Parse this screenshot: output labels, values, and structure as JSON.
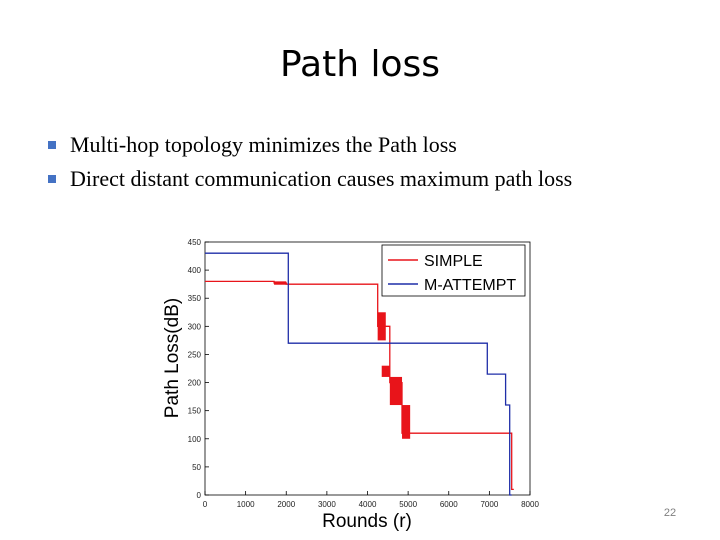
{
  "slide": {
    "title": "Path loss",
    "bullets": [
      "Multi-hop topology minimizes the Path loss",
      "Direct distant communication causes maximum path loss"
    ],
    "page_number": "22"
  },
  "chart_data": {
    "type": "line",
    "title": "",
    "xlabel": "Rounds (r)",
    "ylabel": "Path Loss(dB)",
    "xlim": [
      0,
      8000
    ],
    "ylim": [
      0,
      450
    ],
    "xticks": [
      0,
      1000,
      2000,
      3000,
      4000,
      5000,
      6000,
      7000,
      8000
    ],
    "xtick_labels": [
      "0",
      "1000",
      "2000",
      "3000",
      "4000",
      "5000",
      "6000",
      "7000",
      "8000"
    ],
    "yticks": [
      0,
      50,
      100,
      150,
      200,
      250,
      300,
      350,
      400,
      450
    ],
    "ytick_labels": [
      "0",
      "50",
      "100",
      "150",
      "200",
      "250",
      "300",
      "350",
      "400",
      "450"
    ],
    "grid": false,
    "legend_position": "top-right",
    "series": [
      {
        "name": "SIMPLE",
        "color": "#e8141a",
        "x": [
          0,
          1700,
          1700,
          2000,
          2000,
          4250,
          4250,
          4550,
          4550,
          4850,
          4850,
          7550,
          7550,
          7600
        ],
        "y": [
          380,
          380,
          377,
          377,
          375,
          375,
          300,
          300,
          200,
          200,
          110,
          110,
          10,
          10
        ],
        "bands": [
          {
            "x": [
              1700,
              2000
            ],
            "y": [
              374,
              380
            ]
          },
          {
            "x": [
              4250,
              4450
            ],
            "y": [
              275,
              325
            ]
          },
          {
            "x": [
              4350,
              4550
            ],
            "y": [
              210,
              230
            ]
          },
          {
            "x": [
              4550,
              4850
            ],
            "y": [
              160,
              210
            ]
          },
          {
            "x": [
              4850,
              5050
            ],
            "y": [
              100,
              160
            ]
          }
        ]
      },
      {
        "name": "M-ATTEMPT",
        "color": "#1f2ea8",
        "x": [
          0,
          2050,
          2050,
          6950,
          6950,
          7400,
          7400,
          7500,
          7500,
          7550
        ],
        "y": [
          430,
          430,
          270,
          270,
          215,
          215,
          160,
          160,
          0,
          0
        ]
      }
    ]
  }
}
